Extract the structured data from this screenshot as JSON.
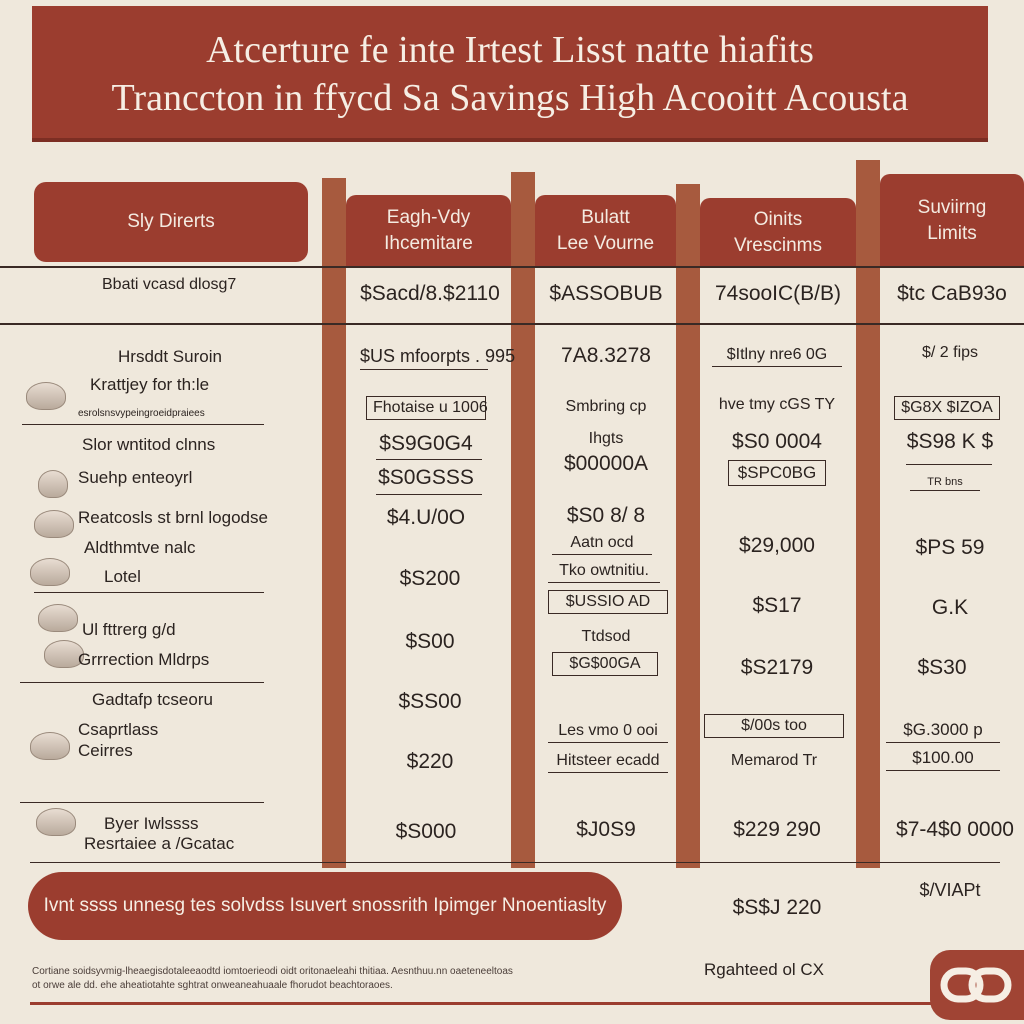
{
  "banner": {
    "line1": "Atcerture fe inte Irtest Lisst natte hiafits",
    "line2": "Tranccton in ffycd Sa Savings High Acooitt Acousta"
  },
  "columns": [
    {
      "label": "Sly Direrts"
    },
    {
      "label1": "Eagh-Vdy",
      "label2": "Ihcemitare"
    },
    {
      "label1": "Bulatt",
      "label2": "Lee Vourne"
    },
    {
      "label1": "Oinits",
      "label2": "Vrescinms"
    },
    {
      "label1": "Suviirng",
      "label2": "Limits"
    }
  ],
  "summary_row": {
    "label": "Bbati vcasd dlosg7",
    "values": [
      "$Sacd/8.$2110",
      "$ASSOBUB",
      "74sooIC(B/B)",
      "$tc CaB93o"
    ]
  },
  "left_items": [
    "Hrsddt Suroin",
    "Krattjey for th:le",
    "esrolsnsvypeingroeidpraiees",
    "Slor wntitod clnns",
    "Suehp enteoyrl",
    "Reatcosls st brnl logodse",
    "Aldthmtve nalc",
    "Lotel",
    "Ul fttrerg g/d",
    "Grrrection Mldrps",
    "Gadtafp tcseoru",
    "Csaprtlass",
    "Ceirres",
    "Byer Iwlssss",
    "Resrtaiee a /Gcatac"
  ],
  "col1": [
    "$US mfoorpts . 995",
    "Fhotaise u 1006",
    "$S9G0G4",
    "$S0GSSS",
    "$4.U/0O",
    "$S200",
    "$S00",
    "$SS00",
    "$220",
    "$S000"
  ],
  "col2": [
    "7A8.3278",
    "Smbring cp",
    "Ihgts",
    "$00000A",
    "$S0 8/ 8",
    "Aatn ocd",
    "Tko owtnitiu.",
    "$USSIO AD",
    "Ttdsod",
    "$G$00GA",
    "Les vmo 0 ooi",
    "Hitsteer ecadd",
    "$J0S9"
  ],
  "col3": [
    "$Itlny nre6 0G",
    "hve tmy cGS TY",
    "$S0 0004",
    "$SPC0BG",
    "$29,000",
    "$S17",
    "$S2179",
    "$/00s too",
    "Memarod Tr",
    "$229 290",
    "$S$J 220"
  ],
  "col4": [
    "$/ 2 fips",
    "$G8X $IZOA",
    "$S98 K $",
    "TR bns",
    "$PS 59",
    "G.K",
    "$S30",
    "$G.3000 p",
    "$100.00",
    "$7-4$0 0000",
    "$/VIAPt"
  ],
  "footer": {
    "pill": "Ivnt ssss unnesg tes solvdss Isuvert snossrith Ipimger Nnoentiaslty",
    "note": "Rgahteed ol CX",
    "fine1": "Cortiane soidsyvmig-lheaegisdotaleeaodtd iomtoerieodi oidt oritonaeleahi thitiaa. Aesnthuu.nn oaeteneeltoas",
    "fine2": "ot orwe ale dd. ehe aheatiotahte sghtrat onweaneahuaale fhorudot beachtoraoes."
  },
  "colors": {
    "accent": "#9b3d2f",
    "bar": "#a75a3e",
    "paper": "#efe8dc"
  }
}
